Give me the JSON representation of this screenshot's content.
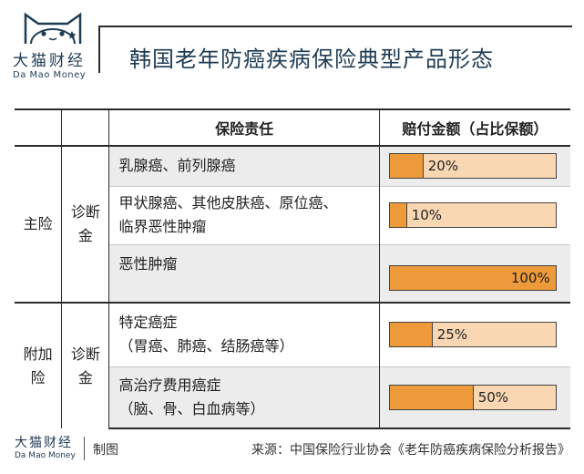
{
  "brand": {
    "name_cn": "大猫财经",
    "name_en": "Da Mao Money"
  },
  "title": "韩国老年防癌疾病保险典型产品形态",
  "table": {
    "header": {
      "responsibility": "保险责任",
      "payout": "赔付金额（占比保额）"
    },
    "groups": [
      {
        "type": "主险",
        "category": "诊断金"
      },
      {
        "type": "附加险",
        "category": "诊断金"
      }
    ],
    "rows": [
      {
        "responsibility": [
          "乳腺癌、前列腺癌"
        ],
        "payout_label": "20%",
        "payout_percent": 20
      },
      {
        "responsibility": [
          "甲状腺癌、其他皮肤癌、原位癌、",
          "临界恶性肿瘤"
        ],
        "payout_label": "10%",
        "payout_percent": 10
      },
      {
        "responsibility": [
          "恶性肿瘤"
        ],
        "payout_label": "100%",
        "payout_percent": 100
      },
      {
        "responsibility": [
          "特定癌症",
          "（胃癌、肺癌、结肠癌等）"
        ],
        "payout_label": "25%",
        "payout_percent": 25
      },
      {
        "responsibility": [
          "高治疗费用癌症",
          "（脑、骨、白血病等）"
        ],
        "payout_label": "50%",
        "payout_percent": 50
      }
    ]
  },
  "footer": {
    "made_by": "制图",
    "source": "来源：中国保险行业协会《老年防癌疾病保险分析报告》"
  },
  "colors": {
    "bar_fill": "#ec9a3a",
    "bar_track": "#f9d7b3",
    "text_navy": "#1f3c55",
    "row_shade": "#ececec"
  }
}
